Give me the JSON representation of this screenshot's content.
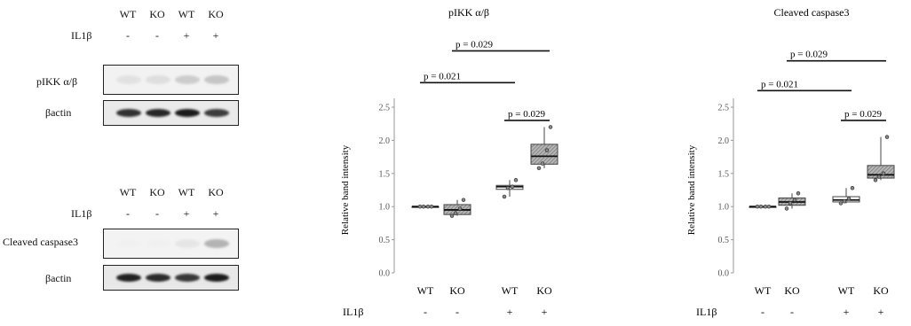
{
  "blots": [
    {
      "conditions": {
        "genotypes": [
          "WT",
          "KO",
          "WT",
          "KO"
        ],
        "treatment_label": "IL1β",
        "treatment": [
          "-",
          "-",
          "+",
          "+"
        ]
      },
      "rows": [
        {
          "label": "pIKK α/β",
          "lanes": [
            0.18,
            0.22,
            0.42,
            0.5
          ],
          "bg": "#f2f2f2",
          "band": "#9a9a9a"
        },
        {
          "label": "βactin",
          "lanes": [
            0.85,
            0.9,
            0.95,
            0.8
          ],
          "bg": "#eaeaea",
          "band": "#111111"
        }
      ]
    },
    {
      "conditions": {
        "genotypes": [
          "WT",
          "KO",
          "WT",
          "KO"
        ],
        "treatment_label": "IL1β",
        "treatment": [
          "-",
          "-",
          "+",
          "+"
        ]
      },
      "rows": [
        {
          "label": "Cleaved caspase3",
          "lanes": [
            0.02,
            0.02,
            0.12,
            0.6
          ],
          "bg": "#f3f3f3",
          "band": "#8a8a8a"
        },
        {
          "label": "βactin",
          "lanes": [
            0.92,
            0.88,
            0.82,
            0.95
          ],
          "bg": "#e8e8e8",
          "band": "#111111"
        }
      ]
    }
  ],
  "chart_data": [
    {
      "type": "box",
      "title": "pIKK α/β",
      "xlabel": "",
      "ylabel": "Relative band intensity",
      "ylim": [
        0,
        2.5
      ],
      "yticks": [
        0.0,
        0.5,
        1.0,
        1.5,
        2.0,
        2.5
      ],
      "categories": [
        "WT",
        "KO",
        "WT",
        "KO"
      ],
      "treatment_label": "IL1β",
      "treatment": [
        "-",
        "-",
        "+",
        "+"
      ],
      "fills": [
        "#ffffff",
        "#a9a9a9",
        "#ffffff",
        "#a9a9a9"
      ],
      "boxes": [
        {
          "min": 1.0,
          "q1": 1.0,
          "median": 1.0,
          "q3": 1.0,
          "max": 1.0
        },
        {
          "min": 0.86,
          "q1": 0.88,
          "median": 0.95,
          "q3": 1.03,
          "max": 1.1
        },
        {
          "min": 1.15,
          "q1": 1.26,
          "median": 1.3,
          "q3": 1.32,
          "max": 1.4
        },
        {
          "min": 1.58,
          "q1": 1.64,
          "median": 1.76,
          "q3": 1.94,
          "max": 2.2
        }
      ],
      "points": [
        [
          1.0,
          1.0,
          1.0,
          1.0
        ],
        [
          0.86,
          0.9,
          0.97,
          1.1
        ],
        [
          1.15,
          1.28,
          1.3,
          1.4
        ],
        [
          1.58,
          1.65,
          1.85,
          2.2
        ]
      ],
      "significance": [
        {
          "from": 0,
          "to": 2,
          "label": "p = 0.021",
          "y": 2.87
        },
        {
          "from": 2,
          "to": 3,
          "label": "p = 0.029",
          "y": 2.3
        },
        {
          "from": 1,
          "to": 3,
          "label": "p = 0.029",
          "y": 3.35
        }
      ]
    },
    {
      "type": "box",
      "title": "Cleaved caspase3",
      "xlabel": "",
      "ylabel": "Relative band intensity",
      "ylim": [
        0,
        2.5
      ],
      "yticks": [
        0.0,
        0.5,
        1.0,
        1.5,
        2.0,
        2.5
      ],
      "categories": [
        "WT",
        "KO",
        "WT",
        "KO"
      ],
      "treatment_label": "IL1β",
      "treatment": [
        "-",
        "-",
        "+",
        "+"
      ],
      "fills": [
        "#ffffff",
        "#a9a9a9",
        "#ffffff",
        "#a9a9a9"
      ],
      "boxes": [
        {
          "min": 1.0,
          "q1": 1.0,
          "median": 1.0,
          "q3": 1.0,
          "max": 1.0
        },
        {
          "min": 0.97,
          "q1": 1.02,
          "median": 1.07,
          "q3": 1.13,
          "max": 1.2
        },
        {
          "min": 1.05,
          "q1": 1.07,
          "median": 1.1,
          "q3": 1.15,
          "max": 1.28
        },
        {
          "min": 1.4,
          "q1": 1.43,
          "median": 1.48,
          "q3": 1.62,
          "max": 2.05
        }
      ],
      "points": [
        [
          1.0,
          1.0,
          1.0,
          1.0
        ],
        [
          0.97,
          1.05,
          1.1,
          1.2
        ],
        [
          1.05,
          1.08,
          1.12,
          1.28
        ],
        [
          1.4,
          1.45,
          1.5,
          2.05
        ]
      ],
      "significance": [
        {
          "from": 0,
          "to": 2,
          "label": "p = 0.021",
          "y": 2.75
        },
        {
          "from": 2,
          "to": 3,
          "label": "p = 0.029",
          "y": 2.3
        },
        {
          "from": 1,
          "to": 3,
          "label": "p = 0.029",
          "y": 3.2
        }
      ]
    }
  ]
}
